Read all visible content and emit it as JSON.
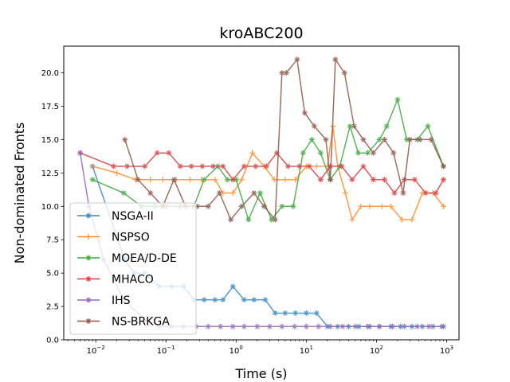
{
  "chart_data": {
    "type": "line",
    "title": "kroABC200",
    "xlabel": "Time (s)",
    "ylabel": "Non-dominated Fronts",
    "xscale": "log",
    "xlim": [
      0.0035,
      1500
    ],
    "ylim": [
      0,
      22
    ],
    "x_ticks": [
      0.01,
      0.1,
      1,
      10,
      100,
      1000
    ],
    "x_tick_labels": [
      {
        "base": "10",
        "exp": "−2"
      },
      {
        "base": "10",
        "exp": "−1"
      },
      {
        "base": "10",
        "exp": "0"
      },
      {
        "base": "10",
        "exp": "1"
      },
      {
        "base": "10",
        "exp": "2"
      },
      {
        "base": "10",
        "exp": "3"
      }
    ],
    "y_ticks": [
      0,
      2.5,
      5,
      7.5,
      10,
      12.5,
      15,
      17.5,
      20
    ],
    "y_tick_labels": [
      "0.0",
      "2.5",
      "5.0",
      "7.5",
      "10.0",
      "12.5",
      "15.0",
      "17.5",
      "20.0"
    ],
    "grid": false,
    "legend_position": "lower-left",
    "series": [
      {
        "name": "NSGA-II",
        "color": "#3a88bb",
        "marker": "star",
        "x": [
          0.009,
          0.026,
          0.035,
          0.05,
          0.08,
          0.12,
          0.18,
          0.25,
          0.35,
          0.5,
          0.65,
          0.9,
          1.3,
          1.8,
          2.6,
          3.6,
          5,
          7,
          10,
          14,
          20,
          28,
          40,
          56,
          80,
          110,
          160,
          220,
          320,
          450,
          640,
          900
        ],
        "y": [
          13,
          6,
          5,
          5,
          4,
          4,
          4,
          3,
          3,
          3,
          3,
          4,
          3,
          3,
          3,
          2,
          2,
          2,
          2,
          2,
          1,
          1,
          1,
          1,
          1,
          1,
          1,
          1,
          1,
          1,
          1,
          1
        ]
      },
      {
        "name": "NSPSO",
        "color": "#ff8c2a",
        "marker": "plus",
        "x": [
          0.009,
          0.02,
          0.037,
          0.06,
          0.09,
          0.14,
          0.22,
          0.32,
          0.5,
          0.65,
          0.9,
          1.2,
          1.7,
          2.5,
          3.5,
          5,
          7,
          10,
          14,
          20,
          24,
          28,
          36,
          45,
          60,
          80,
          120,
          160,
          230,
          320,
          450,
          640,
          900
        ],
        "y": [
          13,
          12.5,
          12,
          12,
          12,
          12,
          12,
          12,
          12,
          11,
          11,
          12,
          14,
          13,
          12,
          12,
          12,
          13,
          13,
          13,
          16,
          13,
          11,
          9,
          10,
          10,
          10,
          10,
          9,
          9,
          11,
          11,
          10
        ]
      },
      {
        "name": "MOEA/D-DE",
        "color": "#3fa83f",
        "marker": "star",
        "x": [
          0.009,
          0.025,
          0.045,
          0.07,
          0.1,
          0.16,
          0.25,
          0.35,
          0.55,
          0.75,
          1.0,
          1.5,
          2.2,
          3.2,
          4.5,
          6.5,
          9,
          12,
          16,
          22,
          30,
          42,
          55,
          75,
          110,
          140,
          200,
          270,
          380,
          540,
          900
        ],
        "y": [
          12,
          11,
          10,
          10,
          10,
          10,
          10,
          12,
          13,
          12,
          12,
          9,
          11,
          9,
          10,
          10,
          14,
          15,
          14,
          12,
          13,
          16,
          14,
          14,
          15,
          16,
          18,
          15,
          15,
          16,
          13
        ]
      },
      {
        "name": "MHACO",
        "color": "#d44040",
        "marker": "star",
        "x": [
          0.006,
          0.018,
          0.028,
          0.05,
          0.075,
          0.11,
          0.16,
          0.23,
          0.33,
          0.47,
          0.65,
          0.9,
          1.3,
          1.9,
          2.7,
          3.8,
          5.5,
          8,
          11,
          16,
          22,
          32,
          45,
          65,
          90,
          130,
          180,
          250,
          350,
          500,
          700,
          900
        ],
        "y": [
          14,
          13,
          13,
          13,
          14,
          14,
          13,
          13,
          13,
          13,
          13,
          12,
          13,
          13,
          13,
          14,
          13,
          13,
          13,
          12,
          13,
          13,
          12,
          13,
          12,
          12,
          11,
          12,
          12,
          11,
          11,
          12
        ]
      },
      {
        "name": "IHS",
        "color": "#9467bd",
        "marker": "star",
        "x": [
          0.006,
          0.008,
          0.013,
          0.025,
          0.05,
          0.08,
          0.12,
          0.18,
          0.27,
          0.4,
          0.6,
          0.9,
          1.3,
          2,
          3,
          4.5,
          6.8,
          10,
          15,
          22,
          33,
          50,
          75,
          110,
          170,
          250,
          380,
          560,
          850
        ],
        "y": [
          14,
          10,
          6,
          3,
          1.5,
          1,
          1,
          1,
          1,
          1,
          1,
          1,
          1,
          1,
          1,
          1,
          1,
          1,
          1,
          1,
          1,
          1,
          1,
          1,
          1,
          1,
          1,
          1,
          1
        ]
      },
      {
        "name": "NS-BRKGA",
        "color": "#8c564b",
        "marker": "star",
        "x": [
          0.026,
          0.04,
          0.06,
          0.09,
          0.13,
          0.19,
          0.28,
          0.4,
          0.58,
          0.84,
          1.2,
          1.8,
          2.5,
          3.6,
          4.5,
          5.2,
          7.4,
          9.5,
          13,
          19,
          22,
          26,
          35,
          48,
          65,
          90,
          130,
          175,
          240,
          300,
          420,
          600,
          900
        ],
        "y": [
          15,
          12,
          11,
          10,
          12,
          10,
          10,
          10,
          11,
          9,
          10,
          11,
          10,
          9,
          20,
          20,
          21,
          17,
          16,
          15,
          12,
          21,
          20,
          16,
          15,
          14,
          15,
          14,
          11,
          15,
          15,
          15,
          13
        ]
      }
    ]
  }
}
